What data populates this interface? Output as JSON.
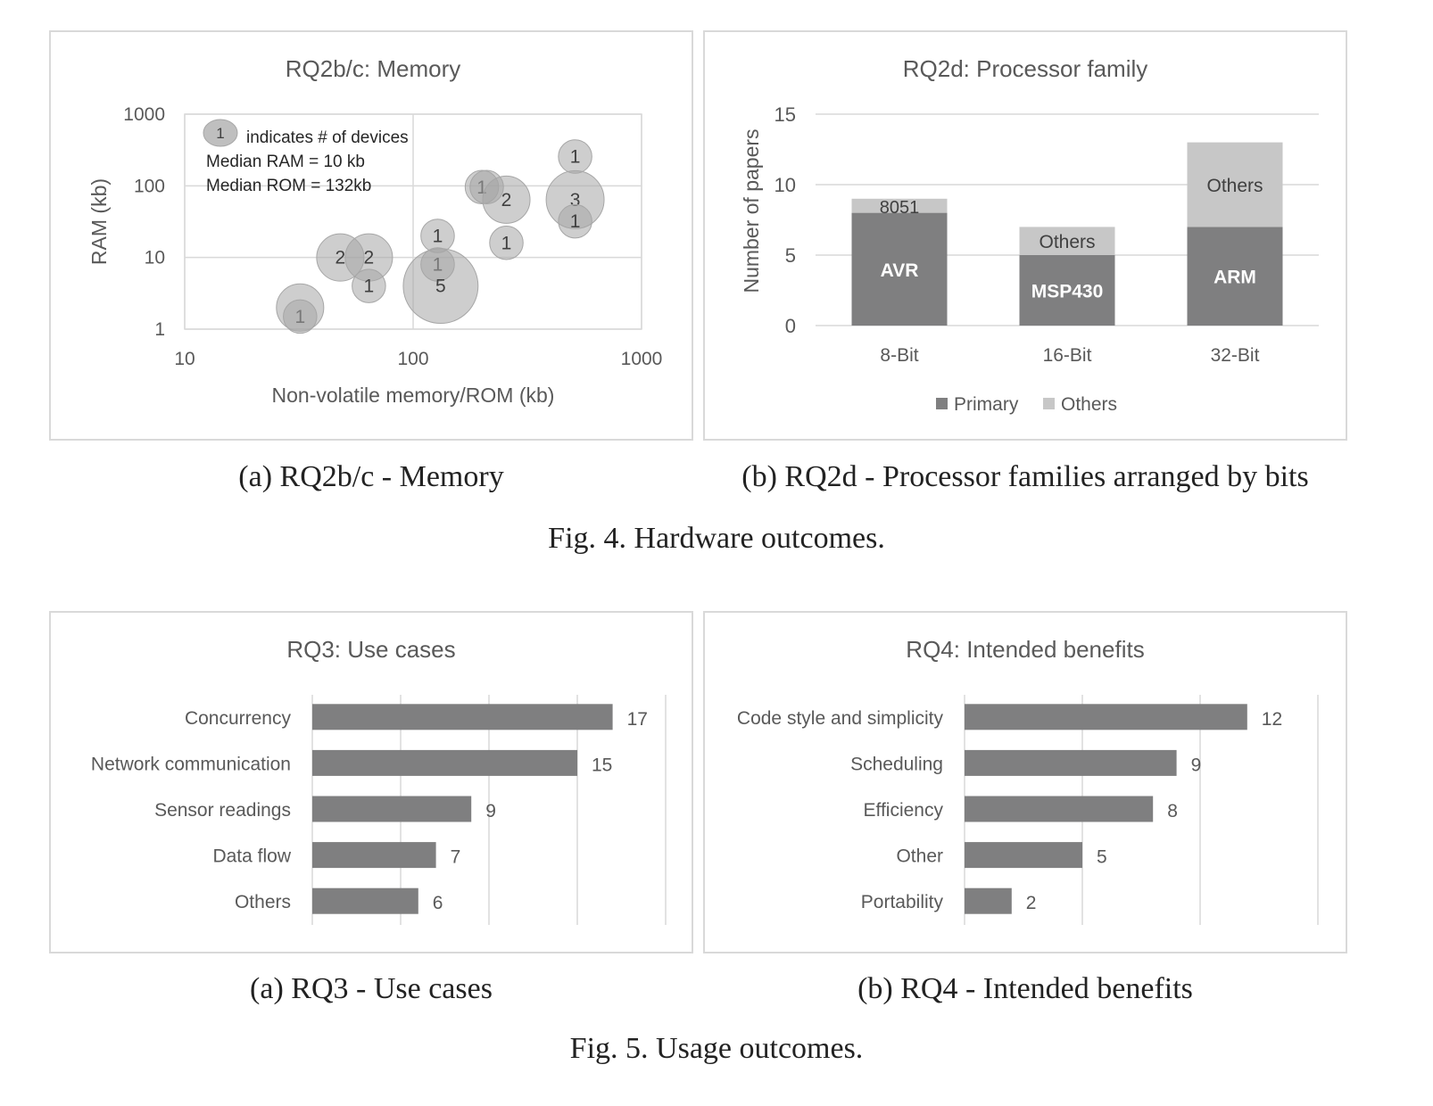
{
  "fig4": {
    "caption": "Fig. 4.  Hardware outcomes.",
    "sub_a": "(a) RQ2b/c - Memory",
    "sub_b": "(b) RQ2d - Processor families arranged by bits"
  },
  "fig5": {
    "caption": "Fig. 5.  Usage outcomes.",
    "sub_a": "(a) RQ3 - Use cases",
    "sub_b": "(b) RQ4 - Intended benefits"
  },
  "chart_data": [
    {
      "type": "scatter",
      "title": "RQ2b/c: Memory",
      "xlabel": "Non-volatile memory/ROM (kb)",
      "ylabel": "RAM (kb)",
      "x_scale": "log",
      "y_scale": "log",
      "xlim": [
        10,
        1000
      ],
      "ylim": [
        1,
        1000
      ],
      "xticks": [
        "10",
        "100",
        "1000"
      ],
      "yticks": [
        "1",
        "10",
        "100",
        "1000"
      ],
      "grid": true,
      "legend_text": "indicates # of devices",
      "legend_sample": "1",
      "notes": [
        "Median RAM = 10 kb",
        "Median ROM = 132kb"
      ],
      "points": [
        {
          "x": 32,
          "y": 1.5,
          "count": 1,
          "label": "1"
        },
        {
          "x": 32,
          "y": 2,
          "count": 2,
          "label": ""
        },
        {
          "x": 48,
          "y": 10,
          "count": 2,
          "label": "2"
        },
        {
          "x": 64,
          "y": 10,
          "count": 2,
          "label": "2"
        },
        {
          "x": 64,
          "y": 4,
          "count": 1,
          "label": "1"
        },
        {
          "x": 128,
          "y": 20,
          "count": 1,
          "label": "1"
        },
        {
          "x": 128,
          "y": 8,
          "count": 1,
          "label": "1"
        },
        {
          "x": 132,
          "y": 4,
          "count": 5,
          "label": "5"
        },
        {
          "x": 200,
          "y": 96,
          "count": 1,
          "label": "1"
        },
        {
          "x": 210,
          "y": 96,
          "count": 1,
          "label": ""
        },
        {
          "x": 256,
          "y": 64,
          "count": 2,
          "label": "2"
        },
        {
          "x": 256,
          "y": 16,
          "count": 1,
          "label": "1"
        },
        {
          "x": 512,
          "y": 256,
          "count": 1,
          "label": "1"
        },
        {
          "x": 512,
          "y": 64,
          "count": 3,
          "label": "3"
        },
        {
          "x": 512,
          "y": 32,
          "count": 1,
          "label": "1"
        }
      ]
    },
    {
      "type": "bar",
      "stacked": true,
      "title": "RQ2d: Processor family",
      "xlabel": "",
      "ylabel": "Number of papers",
      "ylim": [
        0,
        15
      ],
      "yticks": [
        "0",
        "5",
        "10",
        "15"
      ],
      "categories": [
        "8-Bit",
        "16-Bit",
        "32-Bit"
      ],
      "series": [
        {
          "name": "Primary",
          "values": [
            8,
            5,
            7
          ],
          "color": "#7f7f80",
          "labels": [
            "AVR",
            "MSP430",
            "ARM"
          ]
        },
        {
          "name": "Others",
          "values": [
            1,
            2,
            6
          ],
          "color": "#c7c7c7",
          "labels": [
            "8051",
            "Others",
            "Others"
          ]
        }
      ],
      "legend": "bottom"
    },
    {
      "type": "bar",
      "orientation": "horizontal",
      "title": "RQ3: Use cases",
      "categories": [
        "Concurrency",
        "Network communication",
        "Sensor readings",
        "Data flow",
        "Others"
      ],
      "values": [
        17,
        15,
        9,
        7,
        6
      ],
      "xlim": [
        0,
        20
      ],
      "color": "#7f7f80"
    },
    {
      "type": "bar",
      "orientation": "horizontal",
      "title": "RQ4: Intended benefits",
      "categories": [
        "Code style and simplicity",
        "Scheduling",
        "Efficiency",
        "Other",
        "Portability"
      ],
      "values": [
        12,
        9,
        8,
        5,
        2
      ],
      "xlim": [
        0,
        15
      ],
      "color": "#7f7f80"
    }
  ]
}
